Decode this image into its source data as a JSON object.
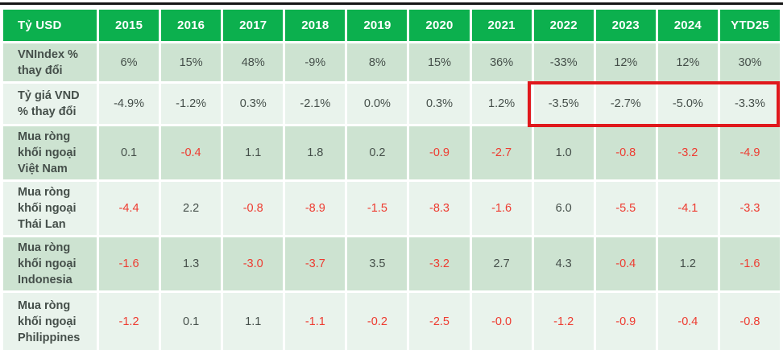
{
  "table": {
    "corner_label": "Tỷ USD",
    "columns": [
      "2015",
      "2016",
      "2017",
      "2018",
      "2019",
      "2020",
      "2021",
      "2022",
      "2023",
      "2024",
      "YTD25"
    ],
    "rows": [
      {
        "label": "VNIndex % thay đổi",
        "shade": "dark",
        "red_negatives": false,
        "values": [
          "6%",
          "15%",
          "48%",
          "-9%",
          "8%",
          "15%",
          "36%",
          "-33%",
          "12%",
          "12%",
          "30%"
        ]
      },
      {
        "label": "Tỷ giá VND % thay đổi",
        "shade": "light",
        "red_negatives": false,
        "values": [
          "-4.9%",
          "-1.2%",
          "0.3%",
          "-2.1%",
          "0.0%",
          "0.3%",
          "1.2%",
          "-3.5%",
          "-2.7%",
          "-5.0%",
          "-3.3%"
        ]
      },
      {
        "label": "Mua ròng khối ngoại Việt Nam",
        "shade": "dark",
        "red_negatives": true,
        "values": [
          "0.1",
          "-0.4",
          "1.1",
          "1.8",
          "0.2",
          "-0.9",
          "-2.7",
          "1.0",
          "-0.8",
          "-3.2",
          "-4.9"
        ]
      },
      {
        "label": "Mua ròng khối ngoại Thái Lan",
        "shade": "light",
        "red_negatives": true,
        "values": [
          "-4.4",
          "2.2",
          "-0.8",
          "-8.9",
          "-1.5",
          "-8.3",
          "-1.6",
          "6.0",
          "-5.5",
          "-4.1",
          "-3.3"
        ]
      },
      {
        "label": "Mua ròng khối ngoại Indonesia",
        "shade": "dark",
        "red_negatives": true,
        "values": [
          "-1.6",
          "1.3",
          "-3.0",
          "-3.7",
          "3.5",
          "-3.2",
          "2.7",
          "4.3",
          "-0.4",
          "1.2",
          "-1.6"
        ]
      },
      {
        "label": "Mua ròng khối ngoại Philippines",
        "shade": "light",
        "red_negatives": true,
        "values": [
          "-1.2",
          "0.1",
          "1.1",
          "-1.1",
          "-0.2",
          "-2.5",
          "-0.0",
          "-1.2",
          "-0.9",
          "-0.4",
          "-0.8"
        ]
      }
    ],
    "highlight": {
      "row_label": "Tỷ giá VND % thay đổi",
      "columns": [
        "2022",
        "2023",
        "2024",
        "YTD25"
      ],
      "style": "red outline box"
    }
  },
  "colors": {
    "header_green": "#0cb04e",
    "row_dark": "#cde3d1",
    "row_light": "#e9f3ec",
    "text_dark": "#454f4a",
    "negative_red": "#ee3b30",
    "highlight_red": "#e0181c",
    "top_rule_black": "#151515"
  },
  "chart_data": {
    "type": "table",
    "title": "",
    "unit": "Tỷ USD",
    "columns": [
      "2015",
      "2016",
      "2017",
      "2018",
      "2019",
      "2020",
      "2021",
      "2022",
      "2023",
      "2024",
      "YTD25"
    ],
    "series": [
      {
        "name": "VNIndex % thay đổi",
        "unit": "%",
        "values": [
          6,
          15,
          48,
          -9,
          8,
          15,
          36,
          -33,
          12,
          12,
          30
        ]
      },
      {
        "name": "Tỷ giá VND % thay đổi",
        "unit": "%",
        "values": [
          -4.9,
          -1.2,
          0.3,
          -2.1,
          0.0,
          0.3,
          1.2,
          -3.5,
          -2.7,
          -5.0,
          -3.3
        ]
      },
      {
        "name": "Mua ròng khối ngoại Việt Nam",
        "unit": "tỷ USD",
        "values": [
          0.1,
          -0.4,
          1.1,
          1.8,
          0.2,
          -0.9,
          -2.7,
          1.0,
          -0.8,
          -3.2,
          -4.9
        ]
      },
      {
        "name": "Mua ròng khối ngoại Thái Lan",
        "unit": "tỷ USD",
        "values": [
          -4.4,
          2.2,
          -0.8,
          -8.9,
          -1.5,
          -8.3,
          -1.6,
          6.0,
          -5.5,
          -4.1,
          -3.3
        ]
      },
      {
        "name": "Mua ròng khối ngoại Indonesia",
        "unit": "tỷ USD",
        "values": [
          -1.6,
          1.3,
          -3.0,
          -3.7,
          3.5,
          -3.2,
          2.7,
          4.3,
          -0.4,
          1.2,
          -1.6
        ]
      },
      {
        "name": "Mua ròng khối ngoại Philippines",
        "unit": "tỷ USD",
        "values": [
          -1.2,
          0.1,
          1.1,
          -1.1,
          -0.2,
          -2.5,
          -0.0,
          -1.2,
          -0.9,
          -0.4,
          -0.8
        ]
      }
    ],
    "annotations": [
      "Red box outlines Tỷ giá VND % thay đổi for 2022, 2023, 2024, YTD25"
    ]
  }
}
